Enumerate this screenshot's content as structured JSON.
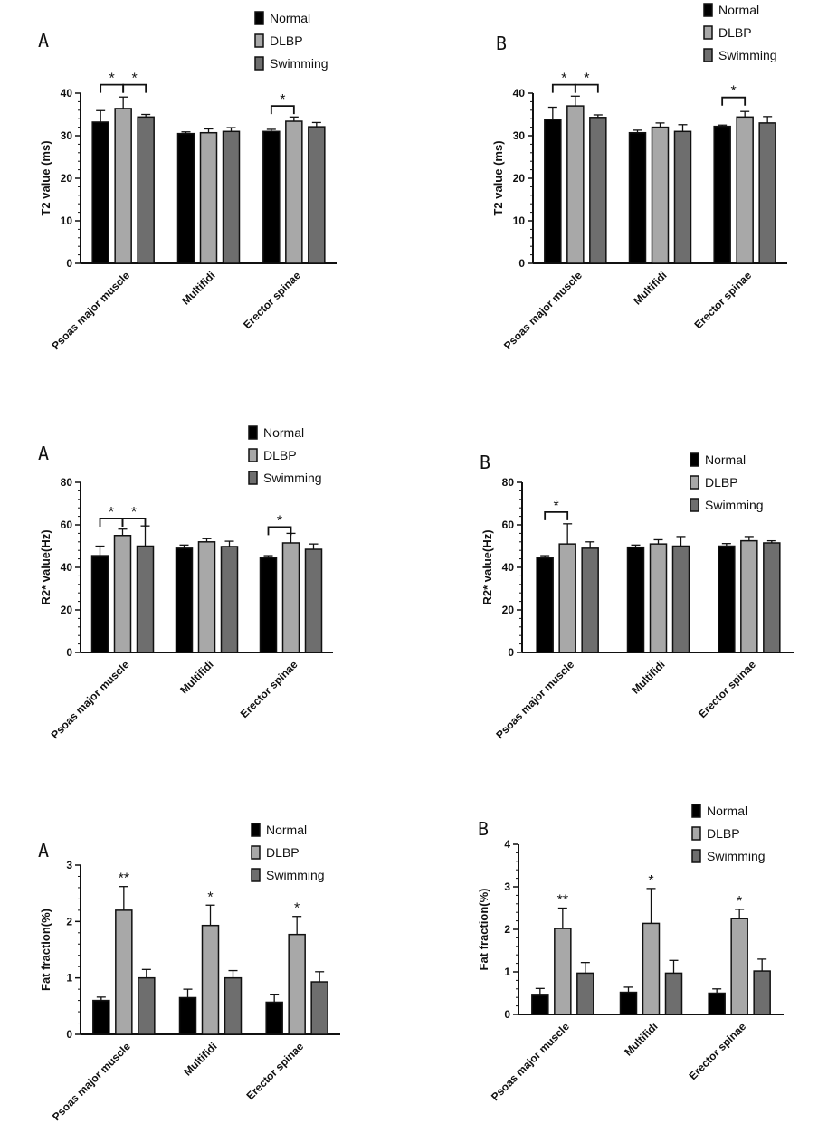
{
  "chart_data": [
    {
      "panel": "A",
      "type": "bar",
      "ylabel": "T2 value (ms)",
      "ylim": [
        0,
        40
      ],
      "yticks": [
        0,
        10,
        20,
        30,
        40
      ],
      "categories": [
        "Psoas major muscle",
        "Multifidi",
        "Erector spinae"
      ],
      "series": [
        {
          "name": "Normal",
          "color": "#000000",
          "values": [
            33.2,
            30.5,
            31.0
          ],
          "errors": [
            2.7,
            0.4,
            0.5
          ]
        },
        {
          "name": "DLBP",
          "color": "#a8a8a8",
          "values": [
            36.4,
            30.7,
            33.4
          ],
          "errors": [
            2.7,
            0.9,
            1.0
          ]
        },
        {
          "name": "Swimming",
          "color": "#6e6e6e",
          "values": [
            34.4,
            31.0,
            32.1
          ],
          "errors": [
            0.6,
            0.9,
            1.0
          ]
        }
      ],
      "significance": [
        {
          "label": "*",
          "category": 0,
          "from": 0,
          "to": 1,
          "y": 42
        },
        {
          "label": "*",
          "category": 0,
          "from": 1,
          "to": 2,
          "y": 42
        },
        {
          "label": "*",
          "category": 2,
          "from": 0,
          "to": 1,
          "y": 37
        }
      ]
    },
    {
      "panel": "B",
      "type": "bar",
      "ylabel": "T2 value (ms)",
      "ylim": [
        0,
        40
      ],
      "yticks": [
        0,
        10,
        20,
        30,
        40
      ],
      "categories": [
        "Psoas major muscle",
        "Multifidi",
        "Erector spinae"
      ],
      "series": [
        {
          "name": "Normal",
          "color": "#000000",
          "values": [
            33.8,
            30.7,
            32.2
          ],
          "errors": [
            2.9,
            0.6,
            0.3
          ]
        },
        {
          "name": "DLBP",
          "color": "#a8a8a8",
          "values": [
            37.0,
            32.0,
            34.4
          ],
          "errors": [
            2.3,
            1.0,
            1.3
          ]
        },
        {
          "name": "Swimming",
          "color": "#6e6e6e",
          "values": [
            34.3,
            31.0,
            33.0
          ],
          "errors": [
            0.6,
            1.6,
            1.5
          ]
        }
      ],
      "significance": [
        {
          "label": "*",
          "category": 0,
          "from": 0,
          "to": 1,
          "y": 42
        },
        {
          "label": "*",
          "category": 0,
          "from": 1,
          "to": 2,
          "y": 42
        },
        {
          "label": "*",
          "category": 2,
          "from": 0,
          "to": 1,
          "y": 39
        }
      ]
    },
    {
      "panel": "A",
      "type": "bar",
      "ylabel": "R2* value(Hz)",
      "ylim": [
        0,
        80
      ],
      "yticks": [
        0,
        20,
        40,
        60,
        80
      ],
      "categories": [
        "Psoas major muscle",
        "Multifidi",
        "Erector spinae"
      ],
      "series": [
        {
          "name": "Normal",
          "color": "#000000",
          "values": [
            45.5,
            49.0,
            44.5
          ],
          "errors": [
            4.5,
            1.5,
            1.0
          ]
        },
        {
          "name": "DLBP",
          "color": "#a8a8a8",
          "values": [
            55.0,
            52.0,
            51.5
          ],
          "errors": [
            3.0,
            1.5,
            4.5
          ]
        },
        {
          "name": "Swimming",
          "color": "#6e6e6e",
          "values": [
            50.0,
            49.8,
            48.5
          ],
          "errors": [
            9.5,
            2.5,
            2.5
          ]
        }
      ],
      "significance": [
        {
          "label": "*",
          "category": 0,
          "from": 0,
          "to": 1,
          "y": 63
        },
        {
          "label": "*",
          "category": 0,
          "from": 1,
          "to": 2,
          "y": 63
        },
        {
          "label": "*",
          "category": 2,
          "from": 0,
          "to": 1,
          "y": 59
        }
      ]
    },
    {
      "panel": "B",
      "type": "bar",
      "ylabel": "R2* value(Hz)",
      "ylim": [
        0,
        80
      ],
      "yticks": [
        0,
        20,
        40,
        60,
        80
      ],
      "categories": [
        "Psoas major muscle",
        "Multifidi",
        "Erector spinae"
      ],
      "series": [
        {
          "name": "Normal",
          "color": "#000000",
          "values": [
            44.5,
            49.5,
            50.0
          ],
          "errors": [
            1.0,
            1.0,
            1.2
          ]
        },
        {
          "name": "DLBP",
          "color": "#a8a8a8",
          "values": [
            51.0,
            51.0,
            52.5
          ],
          "errors": [
            9.5,
            2.0,
            2.0
          ]
        },
        {
          "name": "Swimming",
          "color": "#6e6e6e",
          "values": [
            49.0,
            50.0,
            51.5
          ],
          "errors": [
            3.0,
            4.5,
            1.0
          ]
        }
      ],
      "significance": [
        {
          "label": "*",
          "category": 0,
          "from": 0,
          "to": 1,
          "y": 66
        }
      ]
    },
    {
      "panel": "A",
      "type": "bar",
      "ylabel": "Fat fraction(%)",
      "ylim": [
        0,
        3
      ],
      "yticks": [
        0,
        1,
        2,
        3
      ],
      "categories": [
        "Psoas major muscle",
        "Multifidi",
        "Erector spinae"
      ],
      "series": [
        {
          "name": "Normal",
          "color": "#000000",
          "values": [
            0.6,
            0.65,
            0.57
          ],
          "errors": [
            0.06,
            0.15,
            0.13
          ]
        },
        {
          "name": "DLBP",
          "color": "#a8a8a8",
          "values": [
            2.2,
            1.93,
            1.77
          ],
          "errors": [
            0.42,
            0.36,
            0.32
          ]
        },
        {
          "name": "Swimming",
          "color": "#6e6e6e",
          "values": [
            1.0,
            1.0,
            0.93
          ],
          "errors": [
            0.15,
            0.13,
            0.18
          ]
        }
      ],
      "significance": [
        {
          "label": "**",
          "category": 0,
          "series": 1
        },
        {
          "label": "*",
          "category": 1,
          "series": 1
        },
        {
          "label": "*",
          "category": 2,
          "series": 1
        }
      ]
    },
    {
      "panel": "B",
      "type": "bar",
      "ylabel": "Fat fraction(%)",
      "ylim": [
        0,
        4
      ],
      "yticks": [
        0,
        1,
        2,
        3,
        4
      ],
      "categories": [
        "Psoas major muscle",
        "Multifidi",
        "Erector spinae"
      ],
      "series": [
        {
          "name": "Normal",
          "color": "#000000",
          "values": [
            0.45,
            0.52,
            0.5
          ],
          "errors": [
            0.16,
            0.12,
            0.1
          ]
        },
        {
          "name": "DLBP",
          "color": "#a8a8a8",
          "values": [
            2.02,
            2.14,
            2.25
          ],
          "errors": [
            0.48,
            0.82,
            0.22
          ]
        },
        {
          "name": "Swimming",
          "color": "#6e6e6e",
          "values": [
            0.97,
            0.97,
            1.02
          ],
          "errors": [
            0.25,
            0.3,
            0.28
          ]
        }
      ],
      "significance": [
        {
          "label": "**",
          "category": 0,
          "series": 1
        },
        {
          "label": "*",
          "category": 1,
          "series": 1
        },
        {
          "label": "*",
          "category": 2,
          "series": 1
        }
      ]
    }
  ]
}
